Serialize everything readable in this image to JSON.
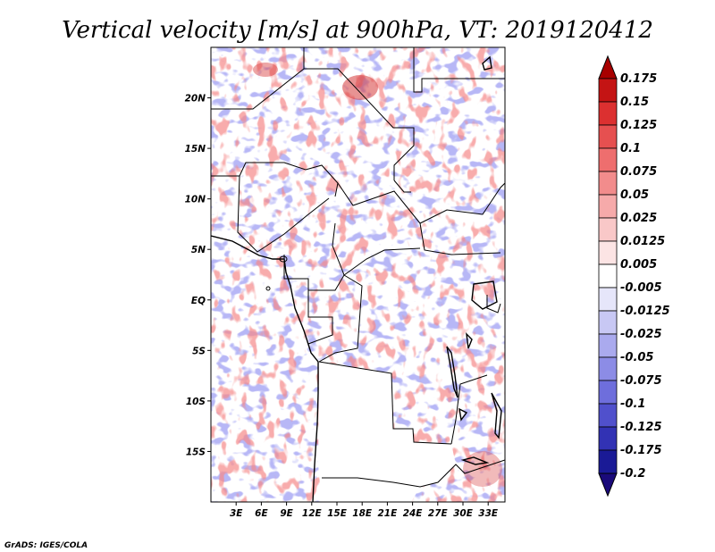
{
  "title": "Vertical velocity [m/s] at 900hPa, VT: 2019120412",
  "credit": "GrADS: IGES/COLA",
  "map": {
    "lon_range": [
      0,
      35
    ],
    "lat_range": [
      -20,
      25
    ],
    "lat_ticks": [
      {
        "lat": 20,
        "label": "20N"
      },
      {
        "lat": 15,
        "label": "15N"
      },
      {
        "lat": 10,
        "label": "10N"
      },
      {
        "lat": 5,
        "label": "5N"
      },
      {
        "lat": 0,
        "label": "EQ"
      },
      {
        "lat": -5,
        "label": "5S"
      },
      {
        "lat": -10,
        "label": "10S"
      },
      {
        "lat": -15,
        "label": "15S"
      }
    ],
    "lon_ticks": [
      {
        "lon": 3,
        "label": "3E"
      },
      {
        "lon": 6,
        "label": "6E"
      },
      {
        "lon": 9,
        "label": "9E"
      },
      {
        "lon": 12,
        "label": "12E"
      },
      {
        "lon": 15,
        "label": "15E"
      },
      {
        "lon": 18,
        "label": "18E"
      },
      {
        "lon": 21,
        "label": "21E"
      },
      {
        "lon": 24,
        "label": "24E"
      },
      {
        "lon": 27,
        "label": "27E"
      },
      {
        "lon": 30,
        "label": "30E"
      },
      {
        "lon": 33,
        "label": "33E"
      }
    ]
  },
  "colorbar": {
    "upper_color": "#a80000",
    "lower_color": "#1a0a7a",
    "levels": [
      {
        "label": "0.175",
        "color": "#a80000"
      },
      {
        "label": "0.15",
        "color": "#c41414"
      },
      {
        "label": "0.125",
        "color": "#dc3030"
      },
      {
        "label": "0.1",
        "color": "#e65050"
      },
      {
        "label": "0.075",
        "color": "#ee6e6e"
      },
      {
        "label": "0.05",
        "color": "#f28c8c"
      },
      {
        "label": "0.025",
        "color": "#f6aaaa"
      },
      {
        "label": "0.0125",
        "color": "#f9c8c8"
      },
      {
        "label": "0.005",
        "color": "#fce4e4"
      },
      {
        "label": "-0.005",
        "color": "#ffffff"
      },
      {
        "label": "-0.0125",
        "color": "#e6e6fa"
      },
      {
        "label": "-0.025",
        "color": "#c8c8f4"
      },
      {
        "label": "-0.05",
        "color": "#aaaaee"
      },
      {
        "label": "-0.075",
        "color": "#8c8ce6"
      },
      {
        "label": "-0.1",
        "color": "#6e6edc"
      },
      {
        "label": "-0.125",
        "color": "#5050cc"
      },
      {
        "label": "-0.175",
        "color": "#3232b4"
      },
      {
        "label": "-0.2",
        "color": "#1a1a96"
      }
    ]
  }
}
